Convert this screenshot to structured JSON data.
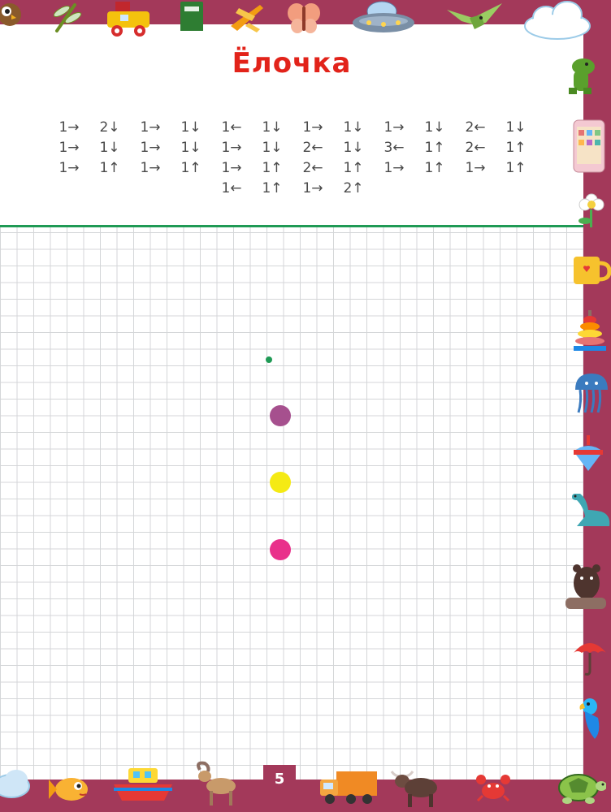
{
  "page": {
    "title": "Ёлочка",
    "page_number": "5",
    "directions": [
      [
        "1→",
        "2↓",
        "1→",
        "1↓",
        "1←",
        "1↓",
        "1→",
        "1↓",
        "1→",
        "1↓",
        "2←",
        "1↓"
      ],
      [
        "1→",
        "1↓",
        "1→",
        "1↓",
        "1→",
        "1↓",
        "2←",
        "1↓",
        "3←",
        "1↑",
        "2←",
        "1↑"
      ],
      [
        "1→",
        "1↑",
        "1→",
        "1↑",
        "1→",
        "1↑",
        "2←",
        "1↑",
        "1→",
        "1↑",
        "1→",
        "1↑"
      ],
      [
        "1←",
        "1↑",
        "1→",
        "2↑"
      ]
    ]
  },
  "colors": {
    "frame": "#a3395a",
    "title": "#e2231a",
    "divider": "#1f9a55",
    "start_dot": "#1f9a55",
    "dot_purple": "#a6508e",
    "dot_yellow": "#f5ea14",
    "dot_pink": "#e9318b"
  },
  "stickers": {
    "top": [
      "owl-icon",
      "dragonfly-icon",
      "toy-train-icon",
      "book-icon",
      "airplane-icon",
      "butterfly-icon",
      "ufo-icon",
      "pterodactyl-icon",
      "cloud-icon"
    ],
    "right": [
      "dinosaur-icon",
      "phone-icon",
      "flower-icon",
      "mug-icon",
      "ring-pyramid-icon",
      "jellyfish-icon",
      "spinning-top-icon",
      "plesiosaur-icon",
      "bear-icon",
      "umbrella-icon",
      "parrot-icon"
    ],
    "bottom": [
      "cloud-icon",
      "fish-icon",
      "boat-icon",
      "goat-icon",
      "truck-icon",
      "bull-icon",
      "crab-icon",
      "turtle-icon"
    ]
  }
}
